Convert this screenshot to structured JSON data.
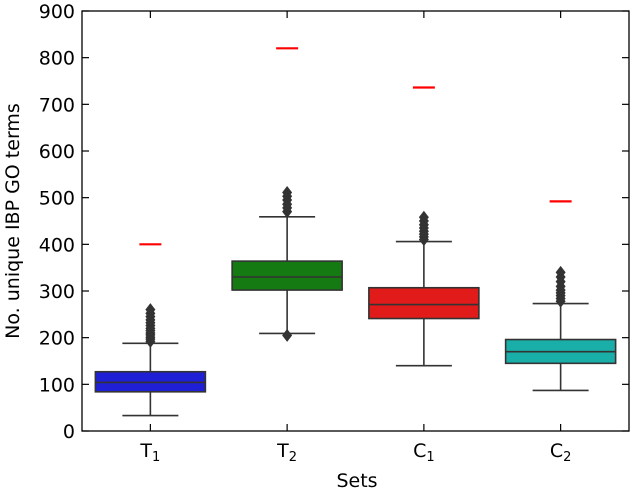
{
  "chart_data": {
    "type": "box",
    "title": "",
    "xlabel": "Sets",
    "ylabel": "No. unique IBP GO terms",
    "ylim": [
      0,
      900
    ],
    "yticks": [
      0,
      100,
      200,
      300,
      400,
      500,
      600,
      700,
      800,
      900
    ],
    "grid": false,
    "categories": [
      {
        "label": "T",
        "sub": "1",
        "color": "#1f1fd6",
        "whisker_low": 33,
        "q1": 84,
        "median": 104,
        "q3": 127,
        "whisker_high": 188,
        "outliers": [
          192,
          197,
          201,
          206,
          210,
          215,
          220,
          226,
          232,
          238,
          245,
          252,
          260
        ],
        "reference": 400
      },
      {
        "label": "T",
        "sub": "2",
        "color": "#157a12",
        "whisker_low": 209,
        "q1": 302,
        "median": 330,
        "q3": 364,
        "whisker_high": 459,
        "outliers": [
          205,
          470,
          478,
          486,
          495,
          503,
          511
        ],
        "reference": 820
      },
      {
        "label": "C",
        "sub": "1",
        "color": "#e11a1a",
        "whisker_low": 140,
        "q1": 241,
        "median": 271,
        "q3": 307,
        "whisker_high": 406,
        "outliers": [
          410,
          416,
          422,
          428,
          435,
          442,
          450,
          458
        ],
        "reference": 736
      },
      {
        "label": "C",
        "sub": "2",
        "color": "#1aaea8",
        "whisker_low": 87,
        "q1": 145,
        "median": 170,
        "q3": 196,
        "whisker_high": 273,
        "outliers": [
          278,
          284,
          290,
          296,
          302,
          310,
          320,
          330,
          340
        ],
        "reference": 492
      }
    ],
    "reference_color": "#ff0000"
  }
}
